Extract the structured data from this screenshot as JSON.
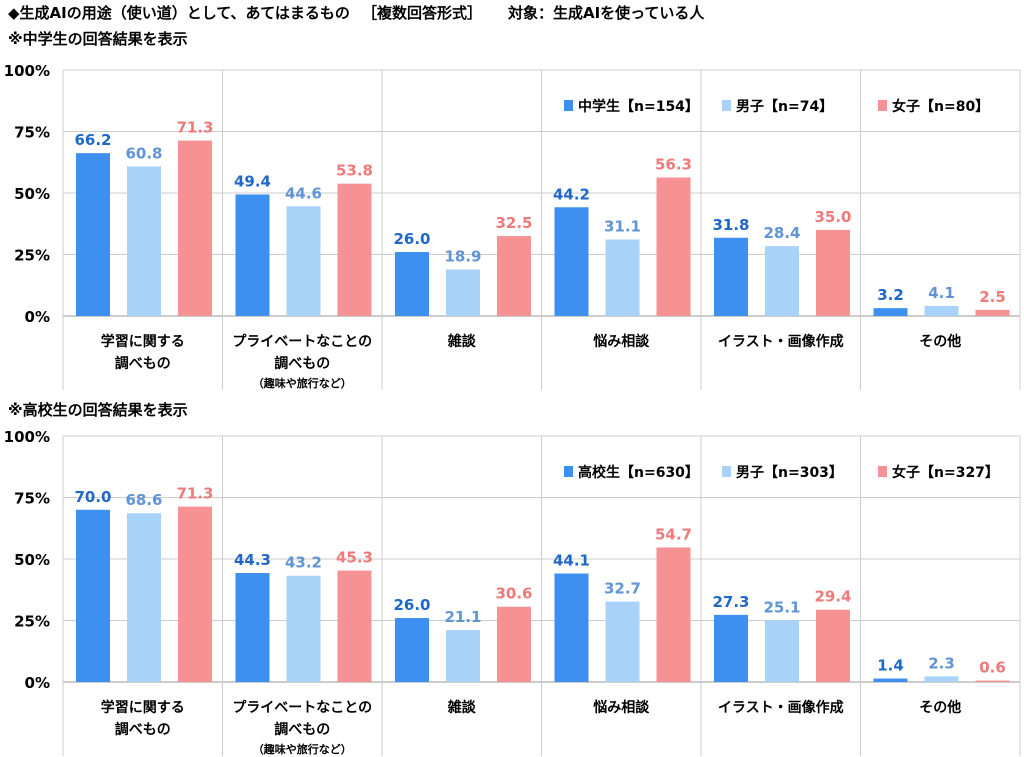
{
  "header": {
    "title": "◆生成AIの用途（使い道）として、あてはまるもの",
    "format": "［複数回答形式］",
    "target": "対象：生成AIを使っている人"
  },
  "colors": {
    "total": "#3d8ff0",
    "male": "#a9d2fb",
    "female": "#f79294",
    "blue_label": "#1f67c9",
    "light_label": "#5f94d6",
    "pink_label": "#f07a7a",
    "grid": "#cccccc"
  },
  "chart_data": [
    {
      "type": "bar",
      "title": "※中学生の回答結果を表示",
      "categories": [
        [
          "学習に関する",
          "調べもの"
        ],
        [
          "プライベートなことの",
          "調べもの"
        ],
        [
          "雑談"
        ],
        [
          "悩み相談"
        ],
        [
          "イラスト・画像作成"
        ],
        [
          "その他"
        ]
      ],
      "category_notes": [
        "",
        "（趣味や旅行など）",
        "",
        "",
        "",
        ""
      ],
      "yticks": [
        "100%",
        "75%",
        "50%",
        "25%",
        "0%"
      ],
      "ylim": [
        0,
        100
      ],
      "legend_position": "top-right",
      "series": [
        {
          "name": "中学生【n=154】",
          "values": [
            66.2,
            49.4,
            26.0,
            44.2,
            31.8,
            3.2
          ],
          "labels": [
            "66.2",
            "49.4",
            "26.0",
            "44.2",
            "31.8",
            "3.2"
          ]
        },
        {
          "name": "男子【n=74】",
          "values": [
            60.8,
            44.6,
            18.9,
            31.1,
            28.4,
            4.1
          ],
          "labels": [
            "60.8",
            "44.6",
            "18.9",
            "31.1",
            "28.4",
            "4.1"
          ]
        },
        {
          "name": "女子【n=80】",
          "values": [
            71.3,
            53.8,
            32.5,
            56.3,
            35.0,
            2.5
          ],
          "labels": [
            "71.3",
            "53.8",
            "32.5",
            "56.3",
            "35.0",
            "2.5"
          ]
        }
      ]
    },
    {
      "type": "bar",
      "title": "※高校生の回答結果を表示",
      "categories": [
        [
          "学習に関する",
          "調べもの"
        ],
        [
          "プライベートなことの",
          "調べもの"
        ],
        [
          "雑談"
        ],
        [
          "悩み相談"
        ],
        [
          "イラスト・画像作成"
        ],
        [
          "その他"
        ]
      ],
      "category_notes": [
        "",
        "（趣味や旅行など）",
        "",
        "",
        "",
        ""
      ],
      "yticks": [
        "100%",
        "75%",
        "50%",
        "25%",
        "0%"
      ],
      "ylim": [
        0,
        100
      ],
      "legend_position": "top-right",
      "series": [
        {
          "name": "高校生【n=630】",
          "values": [
            70.0,
            44.3,
            26.0,
            44.1,
            27.3,
            1.4
          ],
          "labels": [
            "70.0",
            "44.3",
            "26.0",
            "44.1",
            "27.3",
            "1.4"
          ]
        },
        {
          "name": "男子【n=303】",
          "values": [
            68.6,
            43.2,
            21.1,
            32.7,
            25.1,
            2.3
          ],
          "labels": [
            "68.6",
            "43.2",
            "21.1",
            "32.7",
            "25.1",
            "2.3"
          ]
        },
        {
          "name": "女子【n=327】",
          "values": [
            71.3,
            45.3,
            30.6,
            54.7,
            29.4,
            0.6
          ],
          "labels": [
            "71.3",
            "45.3",
            "30.6",
            "54.7",
            "29.4",
            "0.6"
          ]
        }
      ]
    }
  ]
}
